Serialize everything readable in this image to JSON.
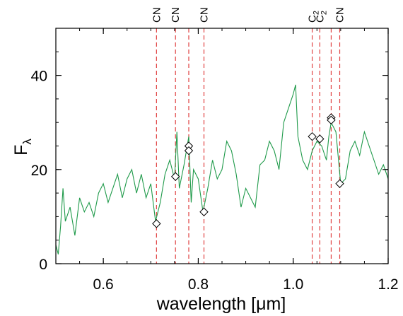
{
  "chart_data": {
    "type": "line",
    "xlabel": "wavelength [μm]",
    "ylabel_main": "F",
    "ylabel_sub": "λ",
    "xlim": [
      0.5,
      1.2
    ],
    "ylim": [
      0,
      50
    ],
    "x_ticks": [
      0.6,
      0.8,
      1.0,
      1.2
    ],
    "x_tick_labels": [
      "0.6",
      "0.8",
      "1.0",
      "1.2"
    ],
    "y_ticks": [
      0,
      20,
      40
    ],
    "y_tick_labels": [
      "0",
      "20",
      "40"
    ],
    "grid": false,
    "series": [
      {
        "color": "#1f9a4a",
        "x": [
          0.5,
          0.505,
          0.51,
          0.515,
          0.52,
          0.53,
          0.54,
          0.55,
          0.56,
          0.57,
          0.58,
          0.59,
          0.6,
          0.61,
          0.62,
          0.63,
          0.64,
          0.65,
          0.66,
          0.67,
          0.68,
          0.69,
          0.7,
          0.71,
          0.72,
          0.73,
          0.74,
          0.75,
          0.755,
          0.76,
          0.77,
          0.78,
          0.785,
          0.79,
          0.8,
          0.81,
          0.82,
          0.83,
          0.84,
          0.85,
          0.86,
          0.87,
          0.88,
          0.89,
          0.9,
          0.91,
          0.92,
          0.93,
          0.94,
          0.95,
          0.96,
          0.97,
          0.98,
          0.99,
          1.0,
          1.005,
          1.01,
          1.02,
          1.03,
          1.04,
          1.05,
          1.06,
          1.07,
          1.075,
          1.08,
          1.09,
          1.1,
          1.11,
          1.12,
          1.13,
          1.14,
          1.15,
          1.16,
          1.17,
          1.18,
          1.19,
          1.2
        ],
        "y": [
          4,
          2,
          8,
          16,
          9,
          12,
          6,
          14,
          11,
          13,
          10,
          15,
          17,
          13,
          16,
          19,
          14,
          18,
          20,
          15,
          19,
          14,
          17,
          9,
          13,
          19,
          22,
          18,
          28,
          16,
          21,
          27,
          13,
          20,
          18,
          11,
          16,
          22,
          18,
          20,
          26,
          24,
          19,
          12,
          16,
          14,
          12,
          21,
          22,
          26,
          24,
          20,
          30,
          33,
          36,
          38,
          27,
          22,
          20,
          24,
          26,
          25,
          22,
          27,
          30,
          28,
          17,
          18,
          24,
          26,
          23,
          28,
          25,
          22,
          19,
          21,
          18
        ]
      }
    ],
    "line_markers": [
      {
        "label": "CN",
        "x": 0.712,
        "sub": ""
      },
      {
        "label": "CN",
        "x": 0.752,
        "sub": ""
      },
      {
        "label": "",
        "x": 0.78,
        "sub": ""
      },
      {
        "label": "CN",
        "x": 0.812,
        "sub": ""
      },
      {
        "label": "C",
        "x": 1.04,
        "sub": "2"
      },
      {
        "label": "C",
        "x": 1.056,
        "sub": "2"
      },
      {
        "label": "",
        "x": 1.08,
        "sub": ""
      },
      {
        "label": "CN",
        "x": 1.098,
        "sub": ""
      }
    ],
    "marker_color": "#e04040",
    "diamonds": [
      {
        "x": 0.712,
        "y": 8.5
      },
      {
        "x": 0.752,
        "y": 18.5
      },
      {
        "x": 0.78,
        "y": 25
      },
      {
        "x": 0.78,
        "y": 24
      },
      {
        "x": 0.812,
        "y": 11
      },
      {
        "x": 1.04,
        "y": 27
      },
      {
        "x": 1.056,
        "y": 26.5
      },
      {
        "x": 1.08,
        "y": 31
      },
      {
        "x": 1.08,
        "y": 30.5
      },
      {
        "x": 1.098,
        "y": 17
      }
    ]
  }
}
